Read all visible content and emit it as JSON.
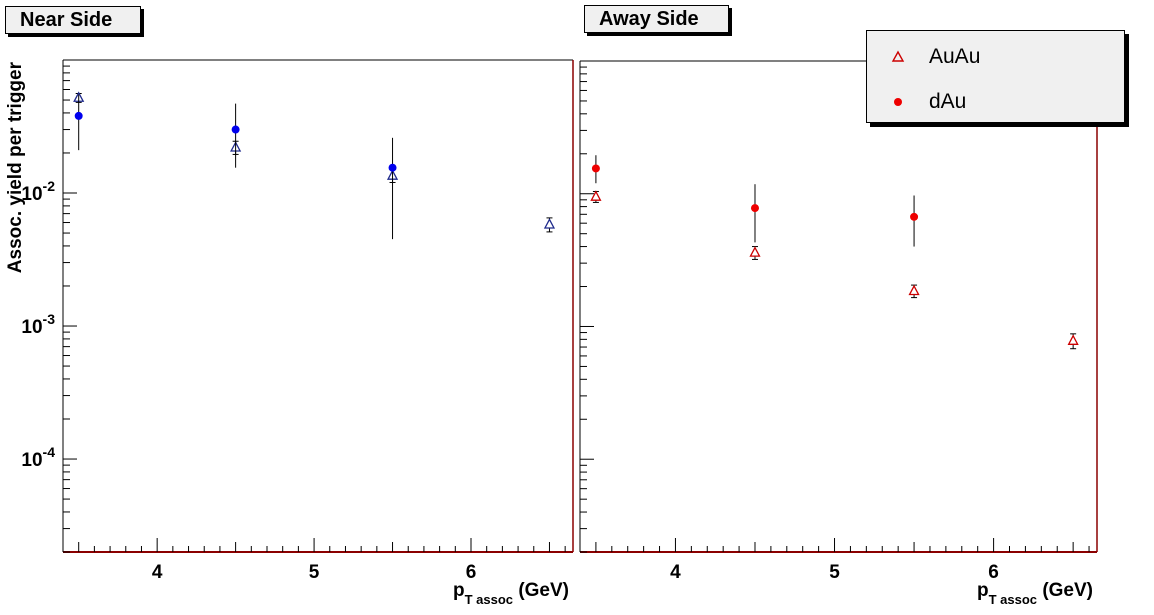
{
  "chart_data": [
    {
      "type": "scatter",
      "title": "Near Side",
      "xlabel_main": "p",
      "xlabel_sub": "T assoc",
      "xlabel_unit": "(GeV)",
      "ylabel": "Assoc. yield per trigger",
      "xlim": [
        3.4,
        6.65
      ],
      "ylim": [
        2e-05,
        0.1
      ],
      "yscale": "log",
      "xticks": [
        "4",
        "5",
        "6"
      ],
      "yticks": [
        {
          "base": "10",
          "exp": "-2"
        },
        {
          "base": "10",
          "exp": "-3"
        },
        {
          "base": "10",
          "exp": "-4"
        }
      ],
      "series": [
        {
          "name": "AuAu",
          "marker": "open-triangle",
          "color": "#1f2a8c",
          "points": [
            {
              "x": 3.5,
              "y": 0.052,
              "err": 0.004
            },
            {
              "x": 4.5,
              "y": 0.022,
              "err": 0.0025
            },
            {
              "x": 5.5,
              "y": 0.0135,
              "err": 0.0015
            },
            {
              "x": 6.5,
              "y": 0.0058,
              "err": 0.0007
            }
          ]
        },
        {
          "name": "dAu",
          "marker": "filled-circle",
          "color": "#0000ee",
          "points": [
            {
              "x": 3.5,
              "y": 0.038,
              "err_low": 0.017,
              "err_high": 0.017
            },
            {
              "x": 4.5,
              "y": 0.03,
              "err_low": 0.0145,
              "err_high": 0.017
            },
            {
              "x": 5.5,
              "y": 0.0155,
              "err_low": 0.011,
              "err_high": 0.0105
            }
          ]
        }
      ]
    },
    {
      "type": "scatter",
      "title": "Away Side",
      "xlabel_main": "p",
      "xlabel_sub": "T assoc",
      "xlabel_unit": "(GeV)",
      "xlim": [
        3.4,
        6.65
      ],
      "ylim": [
        2e-05,
        0.1
      ],
      "yscale": "log",
      "xticks": [
        "4",
        "5",
        "6"
      ],
      "series": [
        {
          "name": "AuAu",
          "marker": "open-triangle",
          "color": "#cc0000",
          "points": [
            {
              "x": 3.5,
              "y": 0.0095,
              "err": 0.0009
            },
            {
              "x": 4.5,
              "y": 0.0036,
              "err": 0.0004
            },
            {
              "x": 5.5,
              "y": 0.00185,
              "err": 0.0002
            },
            {
              "x": 6.5,
              "y": 0.00078,
              "err": 0.0001
            }
          ]
        },
        {
          "name": "dAu",
          "marker": "filled-circle",
          "color": "#ee0000",
          "points": [
            {
              "x": 3.5,
              "y": 0.0155,
              "err_low": 0.0035,
              "err_high": 0.004
            },
            {
              "x": 4.5,
              "y": 0.0078,
              "err_low": 0.0035,
              "err_high": 0.004
            },
            {
              "x": 5.5,
              "y": 0.0067,
              "err_low": 0.0027,
              "err_high": 0.003
            }
          ]
        }
      ]
    }
  ],
  "legend": {
    "items": [
      {
        "label": "AuAu",
        "marker": "open-triangle",
        "color": "#cc0000"
      },
      {
        "label": "dAu",
        "marker": "filled-circle",
        "color": "#ee0000"
      }
    ]
  },
  "colors": {
    "frame": "#000000",
    "bottom_axis": "#8b0000",
    "panel_bg": "#ffffff"
  }
}
